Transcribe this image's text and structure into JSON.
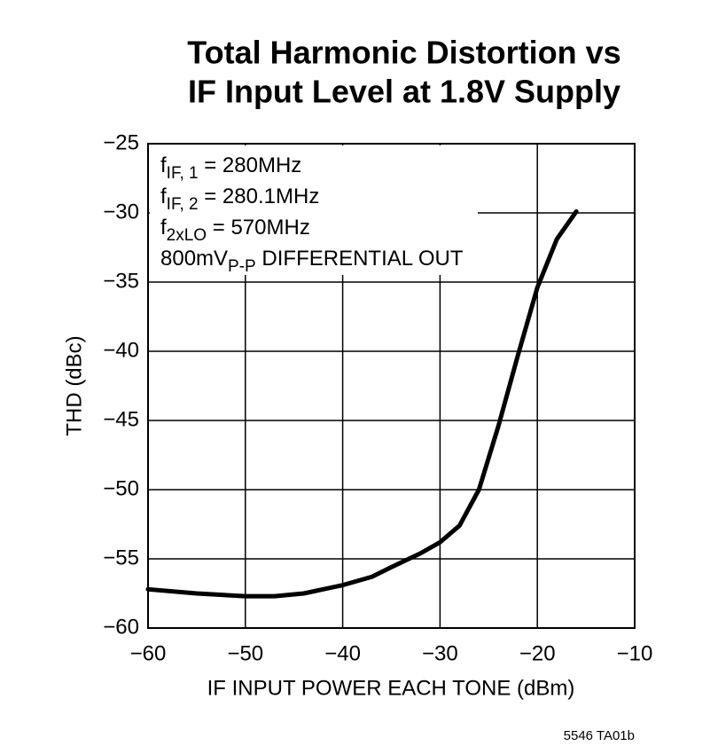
{
  "chart_data": {
    "type": "line",
    "title": [
      "Total Harmonic Distortion vs",
      "IF Input Level at 1.8V Supply"
    ],
    "xlabel": "IF INPUT POWER EACH TONE (dBm)",
    "ylabel": "THD (dBc)",
    "footnote": "5546 TA01b",
    "annotations": [
      {
        "main": "f",
        "subscript": "IF, 1",
        "after": " = 280MHz"
      },
      {
        "main": "f",
        "subscript": "IF, 2",
        "after": " = 280.1MHz"
      },
      {
        "main": "f",
        "subscript": "2xLO",
        "after": " = 570MHz"
      },
      {
        "main": "800mV",
        "subscript": "P-P",
        "after": " DIFFERENTIAL OUT"
      }
    ],
    "x": [
      -60,
      -55,
      -50,
      -47,
      -44,
      -40,
      -37,
      -35,
      -32,
      -30,
      -28,
      -26,
      -24,
      -22,
      -20,
      -18,
      -16
    ],
    "series": [
      {
        "color": "#000000",
        "values": [
          -57.2,
          -57.5,
          -57.7,
          -57.7,
          -57.5,
          -56.9,
          -56.3,
          -55.6,
          -54.6,
          -53.8,
          -52.6,
          -50.0,
          -45.4,
          -40.3,
          -35.4,
          -31.9,
          -29.9
        ]
      }
    ],
    "xlim": [
      -60,
      -10
    ],
    "ylim": [
      -60,
      -25
    ],
    "xticks": [
      {
        "value": -60,
        "label": "−60"
      },
      {
        "value": -50,
        "label": "−50"
      },
      {
        "value": -40,
        "label": "−40"
      },
      {
        "value": -30,
        "label": "−30"
      },
      {
        "value": -20,
        "label": "−20"
      },
      {
        "value": -10,
        "label": "−10"
      }
    ],
    "yticks": [
      {
        "value": -25,
        "label": "−25"
      },
      {
        "value": -30,
        "label": "−30"
      },
      {
        "value": -35,
        "label": "−35"
      },
      {
        "value": -40,
        "label": "−40"
      },
      {
        "value": -45,
        "label": "−45"
      },
      {
        "value": -50,
        "label": "−50"
      },
      {
        "value": -55,
        "label": "−55"
      },
      {
        "value": -60,
        "label": "−60"
      }
    ],
    "grid": true
  }
}
